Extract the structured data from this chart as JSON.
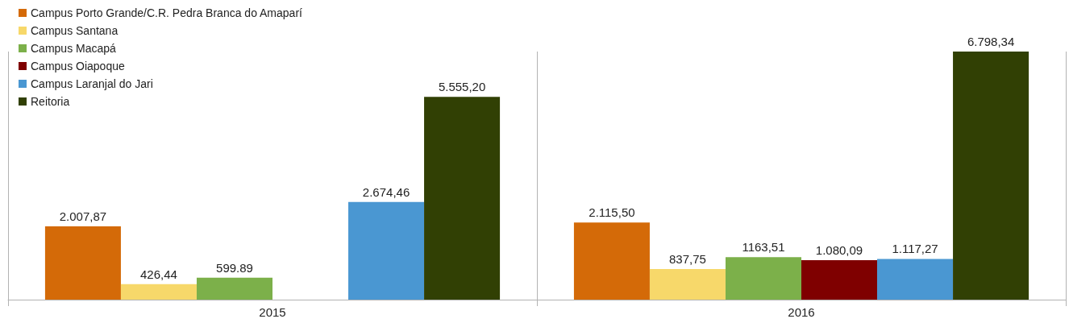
{
  "chart_data": {
    "type": "bar",
    "categories": [
      "2015",
      "2016"
    ],
    "series": [
      {
        "name": "Campus Porto Grande/C.R. Pedra Branca do Amaparí",
        "color": "#d46a08",
        "values": [
          2007.87,
          2115.5
        ],
        "value_labels": [
          "2.007,87",
          "2.115,50"
        ]
      },
      {
        "name": "Campus Santana",
        "color": "#f7d86a",
        "values": [
          426.44,
          837.75
        ],
        "value_labels": [
          "426,44",
          "837,75"
        ]
      },
      {
        "name": "Campus Macapá",
        "color": "#7cb04a",
        "values": [
          599.89,
          1163.51
        ],
        "value_labels": [
          "599.89",
          "1163,51"
        ]
      },
      {
        "name": "Campus Oiapoque",
        "color": "#7f0000",
        "values": [
          null,
          1080.09
        ],
        "value_labels": [
          null,
          "1.080,09"
        ]
      },
      {
        "name": "Campus Laranjal do Jari",
        "color": "#4a97d2",
        "values": [
          2674.46,
          1117.27
        ],
        "value_labels": [
          "2.674,46",
          "1.117,27"
        ]
      },
      {
        "name": "Reitoria",
        "color": "#314004",
        "values": [
          5555.2,
          6798.34
        ],
        "value_labels": [
          "5.555,20",
          "6.798,34"
        ]
      }
    ],
    "legend": "top left",
    "grid": "x"
  }
}
